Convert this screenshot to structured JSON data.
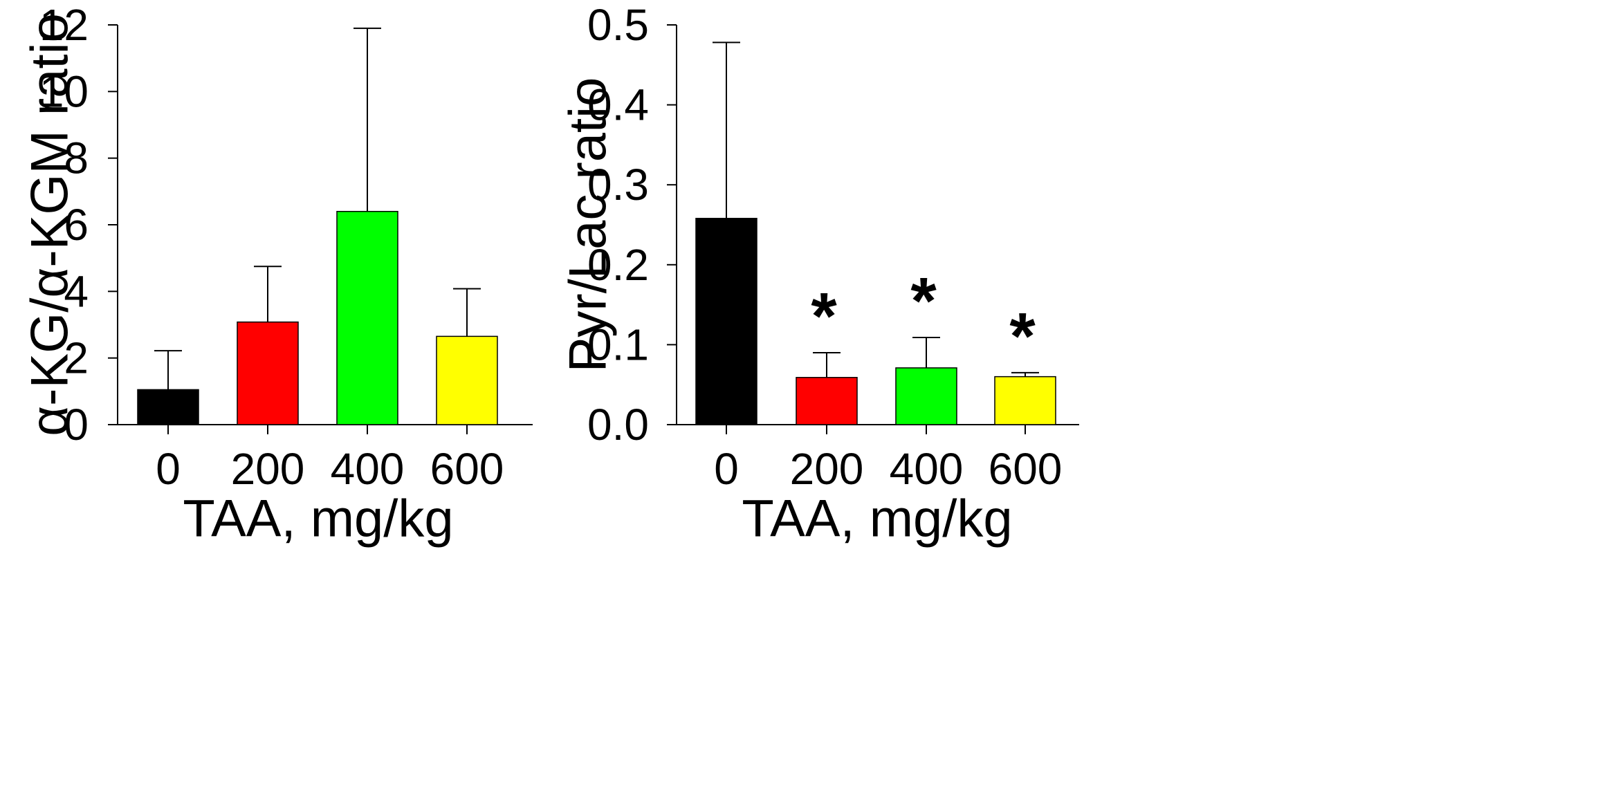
{
  "chart_data": [
    {
      "type": "bar",
      "title": "",
      "xlabel": "TAA, mg/kg",
      "ylabel": "α-KG/α-KGM ratio",
      "categories": [
        "0",
        "200",
        "400",
        "600"
      ],
      "values": [
        1.05,
        3.08,
        6.4,
        2.65
      ],
      "error_upper": [
        2.22,
        4.75,
        11.9,
        4.08
      ],
      "colors": [
        "#000000",
        "#ff0000",
        "#00ff00",
        "#ffff00"
      ],
      "ylim": [
        0,
        12
      ],
      "yticks": [
        0,
        2,
        4,
        6,
        8,
        10,
        12
      ],
      "ytick_labels": [
        "0",
        "2",
        "4",
        "6",
        "8",
        "10",
        "12"
      ],
      "annotations": [
        "",
        "",
        "",
        ""
      ]
    },
    {
      "type": "bar",
      "title": "",
      "xlabel": "TAA, mg/kg",
      "ylabel": "Pyr/Lac ratio",
      "categories": [
        "0",
        "200",
        "400",
        "600"
      ],
      "values": [
        0.258,
        0.059,
        0.071,
        0.06
      ],
      "error_upper": [
        0.478,
        0.09,
        0.109,
        0.065
      ],
      "colors": [
        "#000000",
        "#ff0000",
        "#00ff00",
        "#ffff00"
      ],
      "ylim": [
        0,
        0.5
      ],
      "yticks": [
        0,
        0.1,
        0.2,
        0.3,
        0.4,
        0.5
      ],
      "ytick_labels": [
        "0.0",
        "0.1",
        "0.2",
        "0.3",
        "0.4",
        "0.5"
      ],
      "annotations": [
        "",
        "*",
        "*",
        "*"
      ]
    }
  ]
}
